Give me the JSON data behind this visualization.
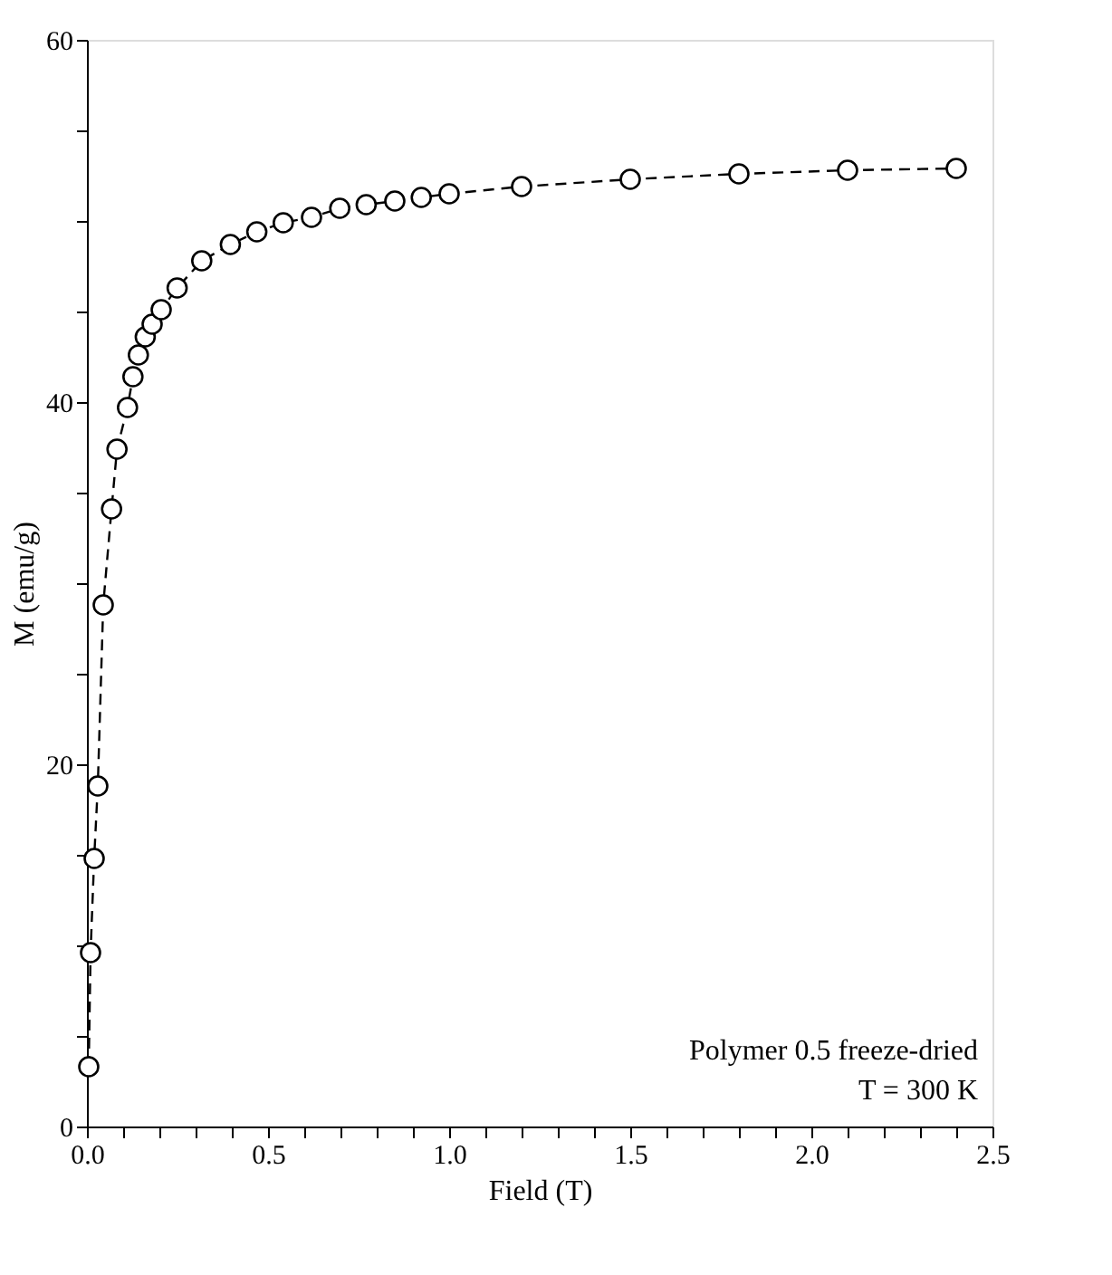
{
  "chart_data": {
    "type": "line",
    "xlabel": "Field (T)",
    "ylabel": "M (emu/g)",
    "annotations": [
      "Polymer 0.5 freeze-dried",
      "T = 300 K"
    ],
    "x": [
      0.005,
      0.01,
      0.02,
      0.03,
      0.045,
      0.068,
      0.083,
      0.112,
      0.127,
      0.142,
      0.161,
      0.18,
      0.205,
      0.249,
      0.317,
      0.396,
      0.469,
      0.542,
      0.62,
      0.698,
      0.771,
      0.85,
      0.923,
      1.0,
      1.2,
      1.5,
      1.8,
      2.1,
      2.4
    ],
    "series": [
      {
        "color": "#000000",
        "values": [
          3.3,
          9.6,
          14.8,
          18.8,
          28.8,
          34.1,
          37.4,
          39.7,
          41.4,
          42.6,
          43.6,
          44.3,
          45.1,
          46.3,
          47.8,
          48.7,
          49.4,
          49.9,
          50.2,
          50.7,
          50.9,
          51.1,
          51.3,
          51.5,
          51.9,
          52.3,
          52.6,
          52.8,
          52.9
        ]
      }
    ],
    "marker": "circle",
    "line_style": "dashed",
    "grid": false,
    "xlim": [
      0,
      2.5
    ],
    "ylim": [
      0,
      60
    ],
    "xticks": [
      {
        "value": 0,
        "label": "0.0"
      },
      {
        "value": 0.1,
        "label": null
      },
      {
        "value": 0.2,
        "label": null
      },
      {
        "value": 0.3,
        "label": null
      },
      {
        "value": 0.4,
        "label": null
      },
      {
        "value": 0.5,
        "label": "0.5"
      },
      {
        "value": 0.6,
        "label": null
      },
      {
        "value": 0.7,
        "label": null
      },
      {
        "value": 0.8,
        "label": null
      },
      {
        "value": 0.9,
        "label": null
      },
      {
        "value": 1.0,
        "label": "1.0"
      },
      {
        "value": 1.1,
        "label": null
      },
      {
        "value": 1.2,
        "label": null
      },
      {
        "value": 1.3,
        "label": null
      },
      {
        "value": 1.4,
        "label": null
      },
      {
        "value": 1.5,
        "label": "1.5"
      },
      {
        "value": 1.6,
        "label": null
      },
      {
        "value": 1.7,
        "label": null
      },
      {
        "value": 1.8,
        "label": null
      },
      {
        "value": 1.9,
        "label": null
      },
      {
        "value": 2.0,
        "label": "2.0"
      },
      {
        "value": 2.1,
        "label": null
      },
      {
        "value": 2.2,
        "label": null
      },
      {
        "value": 2.3,
        "label": null
      },
      {
        "value": 2.4,
        "label": null
      },
      {
        "value": 2.5,
        "label": "2.5"
      }
    ],
    "yticks": [
      0,
      {
        "value": 5,
        "label": null
      },
      {
        "value": 10,
        "label": null
      },
      {
        "value": 15,
        "label": null
      },
      20,
      {
        "value": 25,
        "label": null
      },
      {
        "value": 30,
        "label": null
      },
      {
        "value": 35,
        "label": null
      },
      40,
      {
        "value": 45,
        "label": null
      },
      {
        "value": 50,
        "label": null
      },
      {
        "value": 55,
        "label": null
      },
      60
    ]
  }
}
